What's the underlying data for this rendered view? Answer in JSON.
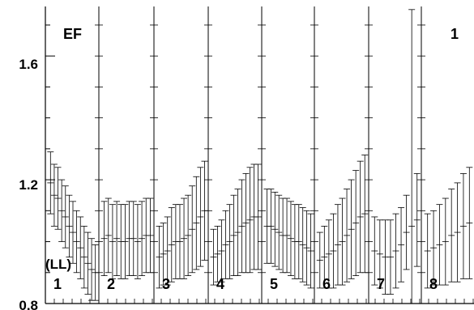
{
  "chart_data": {
    "type": "scatter",
    "title": "",
    "xlabel": "",
    "ylabel": "",
    "ylim": [
      0.8,
      1.76
    ],
    "y_ticks": [
      "0.8",
      "1.2",
      "1.6"
    ],
    "corner_labels": {
      "left": "EF",
      "right": "1"
    },
    "partial_caption": "",
    "annotation": "(LL)",
    "marker": "plus-with-error-bars",
    "colors": {
      "ink": "#000000",
      "background": "#ffffff"
    },
    "panels": [
      {
        "label": "1",
        "points": [
          {
            "y": 1.19,
            "err": 0.1
          },
          {
            "y": 1.15,
            "err": 0.1
          },
          {
            "y": 1.14,
            "err": 0.1
          },
          {
            "y": 1.1,
            "err": 0.1
          },
          {
            "y": 1.08,
            "err": 0.1
          },
          {
            "y": 1.05,
            "err": 0.1
          },
          {
            "y": 1.03,
            "err": 0.1
          },
          {
            "y": 1.0,
            "err": 0.1
          },
          {
            "y": 0.98,
            "err": 0.1
          },
          {
            "y": 0.95,
            "err": 0.1
          },
          {
            "y": 0.93,
            "err": 0.1
          },
          {
            "y": 0.91,
            "err": 0.1
          },
          {
            "y": 0.9,
            "err": 0.09
          }
        ]
      },
      {
        "label": "2",
        "points": [
          {
            "y": 1.01,
            "err": 0.12
          },
          {
            "y": 1.02,
            "err": 0.12
          },
          {
            "y": 1.0,
            "err": 0.12
          },
          {
            "y": 1.01,
            "err": 0.12
          },
          {
            "y": 1.0,
            "err": 0.12
          },
          {
            "y": 1.0,
            "err": 0.12
          },
          {
            "y": 1.01,
            "err": 0.12
          },
          {
            "y": 1.01,
            "err": 0.12
          },
          {
            "y": 1.0,
            "err": 0.12
          },
          {
            "y": 1.01,
            "err": 0.12
          },
          {
            "y": 1.02,
            "err": 0.12
          },
          {
            "y": 1.02,
            "err": 0.12
          }
        ]
      },
      {
        "label": "3",
        "points": [
          {
            "y": 0.95,
            "err": 0.1
          },
          {
            "y": 0.96,
            "err": 0.1
          },
          {
            "y": 0.97,
            "err": 0.11
          },
          {
            "y": 0.99,
            "err": 0.12
          },
          {
            "y": 1.0,
            "err": 0.12
          },
          {
            "y": 1.0,
            "err": 0.12
          },
          {
            "y": 1.01,
            "err": 0.13
          },
          {
            "y": 1.02,
            "err": 0.13
          },
          {
            "y": 1.04,
            "err": 0.14
          },
          {
            "y": 1.06,
            "err": 0.15
          },
          {
            "y": 1.08,
            "err": 0.16
          },
          {
            "y": 1.1,
            "err": 0.16
          }
        ]
      },
      {
        "label": "4",
        "points": [
          {
            "y": 0.95,
            "err": 0.09
          },
          {
            "y": 0.96,
            "err": 0.09
          },
          {
            "y": 0.97,
            "err": 0.1
          },
          {
            "y": 0.99,
            "err": 0.11
          },
          {
            "y": 1.0,
            "err": 0.12
          },
          {
            "y": 1.02,
            "err": 0.13
          },
          {
            "y": 1.03,
            "err": 0.14
          },
          {
            "y": 1.05,
            "err": 0.15
          },
          {
            "y": 1.06,
            "err": 0.16
          },
          {
            "y": 1.07,
            "err": 0.17
          },
          {
            "y": 1.08,
            "err": 0.17
          },
          {
            "y": 1.08,
            "err": 0.17
          }
        ]
      },
      {
        "label": "5",
        "points": [
          {
            "y": 1.05,
            "err": 0.12
          },
          {
            "y": 1.05,
            "err": 0.12
          },
          {
            "y": 1.04,
            "err": 0.12
          },
          {
            "y": 1.03,
            "err": 0.12
          },
          {
            "y": 1.02,
            "err": 0.12
          },
          {
            "y": 1.02,
            "err": 0.12
          },
          {
            "y": 1.01,
            "err": 0.12
          },
          {
            "y": 1.0,
            "err": 0.12
          },
          {
            "y": 1.0,
            "err": 0.12
          },
          {
            "y": 0.99,
            "err": 0.12
          },
          {
            "y": 0.98,
            "err": 0.12
          },
          {
            "y": 0.97,
            "err": 0.12
          }
        ]
      },
      {
        "label": "6",
        "points": [
          {
            "y": 0.94,
            "err": 0.09
          },
          {
            "y": 0.95,
            "err": 0.1
          },
          {
            "y": 0.96,
            "err": 0.11
          },
          {
            "y": 0.97,
            "err": 0.12
          },
          {
            "y": 0.99,
            "err": 0.13
          },
          {
            "y": 1.0,
            "err": 0.14
          },
          {
            "y": 1.02,
            "err": 0.15
          },
          {
            "y": 1.04,
            "err": 0.16
          },
          {
            "y": 1.06,
            "err": 0.17
          },
          {
            "y": 1.08,
            "err": 0.18
          },
          {
            "y": 1.09,
            "err": 0.19
          }
        ]
      },
      {
        "label": "7",
        "points": [
          {
            "y": 0.97,
            "err": 0.11
          },
          {
            "y": 0.96,
            "err": 0.11
          },
          {
            "y": 0.95,
            "err": 0.12
          },
          {
            "y": 0.95,
            "err": 0.12
          },
          {
            "y": 0.97,
            "err": 0.12
          },
          {
            "y": 0.99,
            "err": 0.12
          },
          {
            "y": 1.03,
            "err": 0.12
          },
          {
            "y": 1.05,
            "err": 0.7
          },
          {
            "y": 1.07,
            "err": 0.15
          }
        ]
      },
      {
        "label": "8",
        "points": [
          {
            "y": 0.97,
            "err": 0.12
          },
          {
            "y": 0.98,
            "err": 0.12
          },
          {
            "y": 0.99,
            "err": 0.13
          },
          {
            "y": 1.0,
            "err": 0.14
          },
          {
            "y": 1.02,
            "err": 0.15
          },
          {
            "y": 1.03,
            "err": 0.16
          },
          {
            "y": 1.05,
            "err": 0.17
          },
          {
            "y": 1.06,
            "err": 0.18
          }
        ]
      }
    ]
  }
}
